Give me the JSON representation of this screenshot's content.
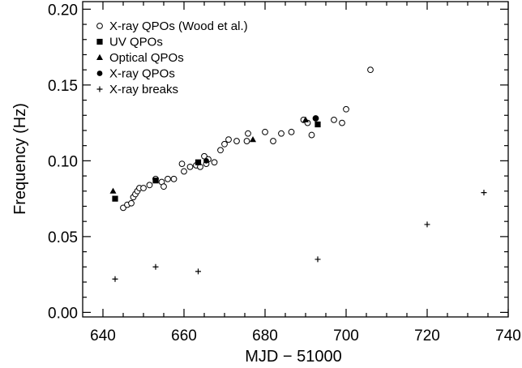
{
  "chart_data": {
    "type": "scatter",
    "title": "",
    "xlabel": "MJD − 51000",
    "ylabel": "Frequency (Hz)",
    "xlim": [
      635,
      740
    ],
    "ylim": [
      -0.003,
      0.205
    ],
    "x_ticks": [
      "640",
      "660",
      "680",
      "700",
      "720",
      "740"
    ],
    "y_ticks": [
      "0.00",
      "0.05",
      "0.10",
      "0.15",
      "0.20"
    ],
    "grid": false,
    "legend_position": "top-left",
    "series": [
      {
        "name": "X-ray QPOs (Wood et al.)",
        "marker": "open-circle",
        "points": [
          [
            645.0,
            0.069
          ],
          [
            646.0,
            0.071
          ],
          [
            647.0,
            0.072
          ],
          [
            647.5,
            0.076
          ],
          [
            648.0,
            0.078
          ],
          [
            648.5,
            0.08
          ],
          [
            649.0,
            0.082
          ],
          [
            650.0,
            0.082
          ],
          [
            651.5,
            0.084
          ],
          [
            653.0,
            0.088
          ],
          [
            654.5,
            0.086
          ],
          [
            655.0,
            0.083
          ],
          [
            656.0,
            0.088
          ],
          [
            657.5,
            0.088
          ],
          [
            659.5,
            0.098
          ],
          [
            660.0,
            0.093
          ],
          [
            661.5,
            0.096
          ],
          [
            663.0,
            0.097
          ],
          [
            664.0,
            0.096
          ],
          [
            665.0,
            0.103
          ],
          [
            665.5,
            0.098
          ],
          [
            666.0,
            0.101
          ],
          [
            667.5,
            0.099
          ],
          [
            669.0,
            0.107
          ],
          [
            670.0,
            0.111
          ],
          [
            671.0,
            0.114
          ],
          [
            673.0,
            0.113
          ],
          [
            675.5,
            0.113
          ],
          [
            675.8,
            0.118
          ],
          [
            680.0,
            0.119
          ],
          [
            682.0,
            0.113
          ],
          [
            684.0,
            0.118
          ],
          [
            686.5,
            0.119
          ],
          [
            689.5,
            0.127
          ],
          [
            690.5,
            0.125
          ],
          [
            691.5,
            0.117
          ],
          [
            692.5,
            0.128
          ],
          [
            697.0,
            0.127
          ],
          [
            699.0,
            0.125
          ],
          [
            700.0,
            0.134
          ],
          [
            706.0,
            0.16
          ]
        ]
      },
      {
        "name": "UV QPOs",
        "marker": "filled-square",
        "points": [
          [
            643.0,
            0.075
          ],
          [
            653.0,
            0.087
          ],
          [
            663.5,
            0.099
          ],
          [
            693.0,
            0.124
          ]
        ]
      },
      {
        "name": "Optical QPOs",
        "marker": "filled-triangle",
        "points": [
          [
            642.5,
            0.08
          ],
          [
            677.0,
            0.114
          ],
          [
            690.0,
            0.127
          ]
        ]
      },
      {
        "name": "X-ray QPOs",
        "marker": "filled-circle",
        "points": [
          [
            665.5,
            0.1
          ],
          [
            692.5,
            0.128
          ]
        ]
      },
      {
        "name": "X-ray breaks",
        "marker": "plus",
        "points": [
          [
            643.0,
            0.022
          ],
          [
            653.0,
            0.03
          ],
          [
            663.5,
            0.027
          ],
          [
            693.0,
            0.035
          ],
          [
            720.0,
            0.058
          ],
          [
            734.0,
            0.079
          ]
        ]
      }
    ]
  }
}
